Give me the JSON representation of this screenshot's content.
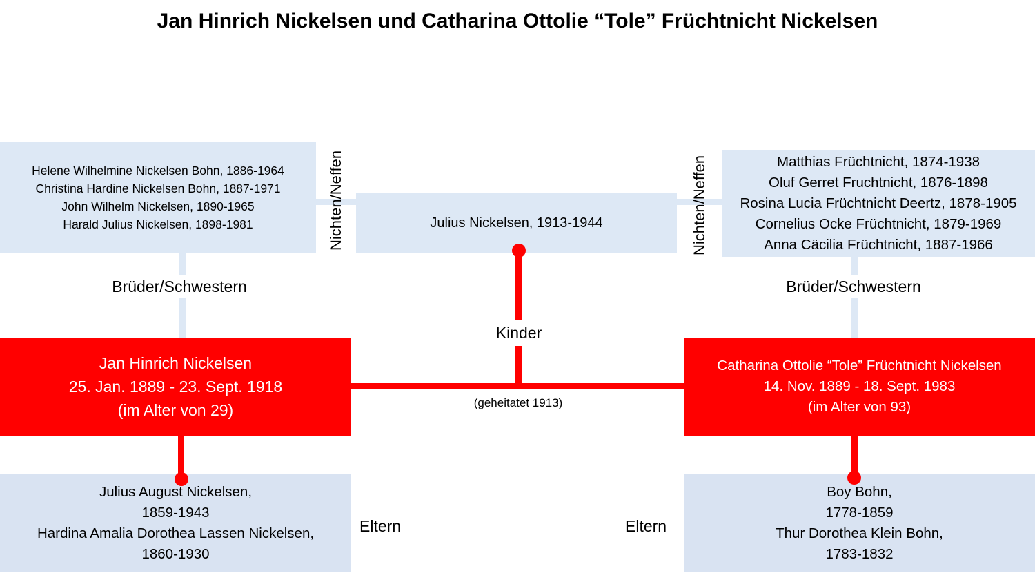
{
  "title": "Jan Hinrich Nickelsen und Catharina Ottolie “Tole” Früchtnicht Nickelsen",
  "left_siblings": [
    "Helene Wilhelmine Nickelsen Bohn, 1886-1964",
    "Christina Hardine Nickelsen Bohn, 1887-1971",
    "John Wilhelm Nickelsen, 1890-1965",
    "Harald Julius Nickelsen, 1898-1981"
  ],
  "right_siblings": [
    "Matthias Früchtnicht, 1874-1938",
    "Oluf Gerret Fruchtnicht, 1876-1898",
    "Rosina Lucia Früchtnicht Deertz, 1878-1905",
    "Cornelius Ocke Früchtnicht, 1879-1969",
    "Anna Cäcilia Früchtnicht, 1887-1966"
  ],
  "child": "Julius Nickelsen, 1913-1944",
  "labels": {
    "nieces_nephews": "Nichten/Neffen",
    "siblings": "Brüder/Schwestern",
    "children": "Kinder",
    "married": "(geheitatet 1913)",
    "parents": "Eltern"
  },
  "husband": {
    "name": "Jan Hinrich Nickelsen",
    "dates": "25. Jan. 1889 - 23. Sept. 1918",
    "age": "(im Alter von 29)"
  },
  "wife": {
    "name": "Catharina Ottolie “Tole” Früchtnicht Nickelsen",
    "dates": "14. Nov. 1889 - 18. Sept. 1983",
    "age": "(im Alter von 93)"
  },
  "husband_parents": [
    "Julius August Nickelsen,",
    "1859-1943",
    "Hardina Amalia Dorothea Lassen Nickelsen,",
    "1860-1930"
  ],
  "wife_parents": [
    "Boy Bohn,",
    "1778-1859",
    "Thur Dorothea Klein Bohn,",
    "1783-1832"
  ],
  "colors": {
    "accent_red": "#ff0000",
    "box_light": "#dde8f5"
  }
}
